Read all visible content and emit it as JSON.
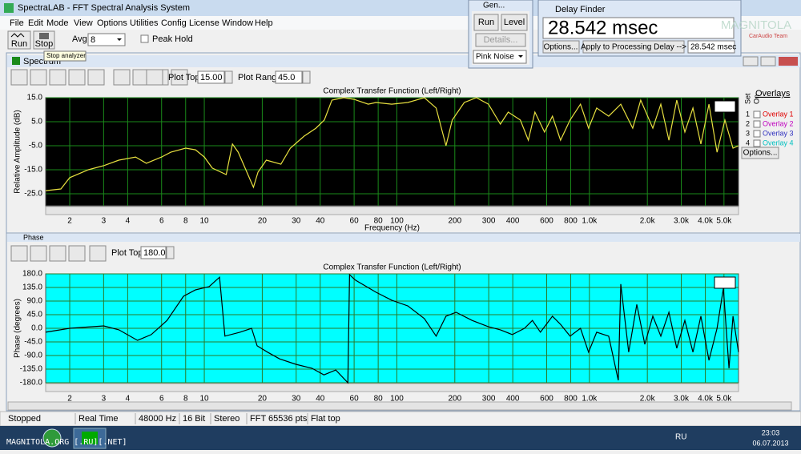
{
  "window": {
    "title": "SpectraLAB - FFT Spectral Analysis System"
  },
  "menu": [
    "File",
    "Edit",
    "Mode",
    "View",
    "Options",
    "Utilities",
    "Config",
    "License",
    "Window",
    "Help"
  ],
  "toolbar": {
    "run": "Run",
    "stop": "Stop",
    "avg_label": "Avg:",
    "avg_value": "8",
    "peak_hold": "Peak Hold",
    "tooltip": "Stop analyzer"
  },
  "generator": {
    "title": "Gen...",
    "run": "Run",
    "level": "Level",
    "details": "Details...",
    "signal": "Pink Noise"
  },
  "delay_finder": {
    "title": "Delay Finder",
    "delay": "28.542 msec",
    "options": "Options...",
    "apply": "Apply to Processing Delay -->",
    "value": "28.542 msec"
  },
  "logo": {
    "name": "MAGNITOLA",
    "tagline": "CarAudio Team"
  },
  "spectrum_window": {
    "title": "Spectrum",
    "plot_top_label": "Plot Top:",
    "plot_top": "15.00",
    "plot_range_label": "Plot Range:",
    "plot_range": "45.0"
  },
  "overlays": {
    "title": "Overlays",
    "set": "Set",
    "on": "On",
    "items": [
      {
        "num": "1",
        "name": "Overlay 1",
        "color": "#e00000"
      },
      {
        "num": "2",
        "name": "Overlay 2",
        "color": "#c000c0"
      },
      {
        "num": "3",
        "name": "Overlay 3",
        "color": "#3030c0"
      },
      {
        "num": "4",
        "name": "Overlay 4",
        "color": "#00c0c0"
      }
    ],
    "options": "Options..."
  },
  "phase_window": {
    "title": "Phase",
    "plot_top_label": "Plot Top:",
    "plot_top": "180.0"
  },
  "status_bar": [
    "Stopped",
    "Real Time",
    "48000 Hz",
    "16 Bit",
    "Stereo",
    "FFT 65536 pts",
    "Flat top"
  ],
  "taskbar": {
    "watermark": "MAGNITOLA.ORG [.RU][.NET]",
    "language": "RU",
    "time": "23:03",
    "date": "06.07.2013"
  },
  "chart_data": [
    {
      "type": "line",
      "title": "Complex Transfer Function (Left/Right)",
      "x_label": "Frequency (Hz)",
      "y_label": "Relative Amplitude (dB)",
      "x_scale": "log",
      "grid": true,
      "plot_background": "#000000",
      "grid_color": "#1a8a1a",
      "xlim": [
        1.5,
        5950
      ],
      "ylim": [
        -30,
        15
      ],
      "xticks": [
        2,
        3,
        4,
        6,
        8,
        10,
        20,
        30,
        40,
        60,
        80,
        100,
        200,
        300,
        400,
        600,
        800,
        {
          "value": 1000,
          "label": "1.0k"
        },
        {
          "value": 2000,
          "label": "2.0k"
        },
        {
          "value": 3000,
          "label": "3.0k"
        },
        {
          "value": 4000,
          "label": "4.0k"
        },
        {
          "value": 5000,
          "label": "5.0k"
        }
      ],
      "yticks": [
        {
          "value": 15,
          "label": "15.0"
        },
        {
          "value": 5,
          "label": "5.0"
        },
        {
          "value": -5,
          "label": "-5.0"
        },
        {
          "value": -15,
          "label": "-15.0"
        },
        {
          "value": -25,
          "label": "-25.0"
        }
      ],
      "x": [
        1.5,
        1.8,
        2,
        2.5,
        3,
        3.6,
        4.4,
        5,
        6,
        6.7,
        8,
        9,
        10,
        11,
        13,
        14,
        15,
        18,
        19,
        21,
        25,
        28,
        33,
        38,
        42,
        46,
        53,
        60,
        71,
        78,
        94,
        114,
        139,
        160,
        180,
        194,
        224,
        259,
        299,
        345,
        379,
        438,
        482,
        521,
        585,
        643,
        708,
        794,
        899,
        990,
        1091,
        1259,
        1455,
        1679,
        1848,
        2134,
        2349,
        2588,
        2844,
        3133,
        3451,
        3793,
        4178,
        4603,
        5058,
        5572,
        5950
      ],
      "series": [
        {
          "color": "#e8e040",
          "values": [
            -23.7,
            -23,
            -18.3,
            -15,
            -13.3,
            -11,
            -9.7,
            -12.3,
            -9.7,
            -7.7,
            -6,
            -6.7,
            -9.7,
            -14.3,
            -17,
            -4.3,
            -7.7,
            -22.3,
            -16,
            -11,
            -12.7,
            -6,
            -1,
            2.3,
            5.7,
            14,
            15,
            14.3,
            12.3,
            13,
            12.3,
            13,
            15,
            10.7,
            -5,
            5.7,
            13,
            15,
            12.3,
            4,
            9,
            5.7,
            -2.7,
            9,
            0.7,
            7.3,
            -2.7,
            5.7,
            12.3,
            2.3,
            10.7,
            7.3,
            12.3,
            2.3,
            14,
            2.3,
            12.3,
            -2.7,
            14,
            0.7,
            10.7,
            -4.3,
            12.3,
            -7.7,
            5.7,
            -6,
            -5
          ]
        }
      ]
    },
    {
      "type": "line",
      "title": "Complex Transfer Function (Left/Right)",
      "y_label": "Phase (degrees)",
      "x_scale": "log",
      "grid": true,
      "plot_background": "#00ffff",
      "grid_color": "#2a7a2a",
      "xlim": [
        1.5,
        5950
      ],
      "ylim": [
        -180,
        180
      ],
      "xticks": [
        2,
        3,
        4,
        6,
        8,
        10,
        20,
        30,
        40,
        60,
        80,
        100,
        200,
        300,
        400,
        600,
        800,
        {
          "value": 1000,
          "label": "1.0k"
        },
        {
          "value": 2000,
          "label": "2.0k"
        },
        {
          "value": 3000,
          "label": "3.0k"
        },
        {
          "value": 4000,
          "label": "4.0k"
        },
        {
          "value": 5000,
          "label": "5.0k"
        }
      ],
      "yticks": [
        {
          "value": 180,
          "label": "180.0"
        },
        {
          "value": 135,
          "label": "135.0"
        },
        {
          "value": 90,
          "label": "90.0"
        },
        {
          "value": 45,
          "label": "45.0"
        },
        {
          "value": 0,
          "label": "0.0"
        },
        {
          "value": -45,
          "label": "-45.0"
        },
        {
          "value": -90,
          "label": "-90.0"
        },
        {
          "value": -135,
          "label": "-135.0"
        },
        {
          "value": -180,
          "label": "-180.0"
        }
      ],
      "x": [
        1.5,
        2,
        3,
        3.6,
        4.5,
        5.3,
        6.4,
        7.8,
        9,
        10.6,
        12,
        12.8,
        15.3,
        17.6,
        18.8,
        21.3,
        24.6,
        29.9,
        36.2,
        41.8,
        48.2,
        55.7,
        56.8,
        61,
        78,
        94,
        114,
        139,
        160,
        180,
        203,
        246,
        299,
        345,
        398,
        460,
        506,
        557,
        643,
        708,
        794,
        899,
        990,
        1091,
        1259,
        1413,
        1455,
        1600,
        1762,
        1940,
        2134,
        2349,
        2588,
        2844,
        3133,
        3451,
        3793,
        4178,
        4603,
        4966,
        5309,
        5572,
        5950
      ],
      "series": [
        {
          "color": "#000000",
          "values": [
            -13,
            0,
            8,
            -5,
            -40,
            -21,
            26,
            106,
            127,
            138,
            169,
            -26,
            -13,
            0,
            -58,
            -79,
            -101,
            -119,
            -132,
            -154,
            -138,
            -180,
            177,
            159,
            119,
            93,
            74,
            32,
            -26,
            40,
            53,
            26,
            5,
            -5,
            -21,
            0,
            26,
            -13,
            40,
            13,
            -26,
            0,
            -79,
            -13,
            -26,
            -172,
            146,
            -79,
            79,
            -53,
            40,
            -26,
            53,
            -66,
            26,
            -79,
            40,
            -106,
            0,
            132,
            -132,
            40,
            -79
          ]
        }
      ]
    }
  ]
}
